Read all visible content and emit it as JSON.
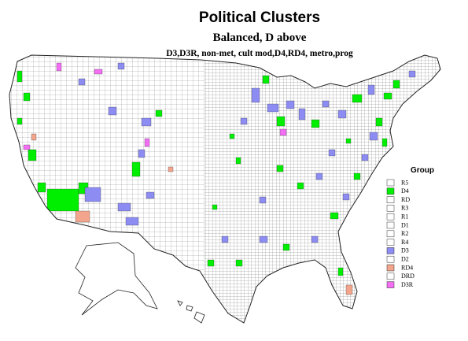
{
  "title": "Political Clusters",
  "subtitle": "Balanced, D above",
  "description": "D3,D3R, non-met, cult mod,D4,RD4, metro,prog",
  "legend": {
    "title": "Group",
    "items": [
      {
        "label": "R5",
        "color": "#ffffff"
      },
      {
        "label": "D4",
        "color": "#00ee00"
      },
      {
        "label": "RD",
        "color": "#ffffff"
      },
      {
        "label": "R3",
        "color": "#ffffff"
      },
      {
        "label": "R1",
        "color": "#ffffff"
      },
      {
        "label": "D1",
        "color": "#ffffff"
      },
      {
        "label": "R2",
        "color": "#ffffff"
      },
      {
        "label": "R4",
        "color": "#ffffff"
      },
      {
        "label": "D3",
        "color": "#8c8cf2"
      },
      {
        "label": "D2",
        "color": "#ffffff"
      },
      {
        "label": "RD4",
        "color": "#f2a58c"
      },
      {
        "label": "DRD",
        "color": "#ffffff"
      },
      {
        "label": "D3R",
        "color": "#f26ef2"
      }
    ]
  }
}
